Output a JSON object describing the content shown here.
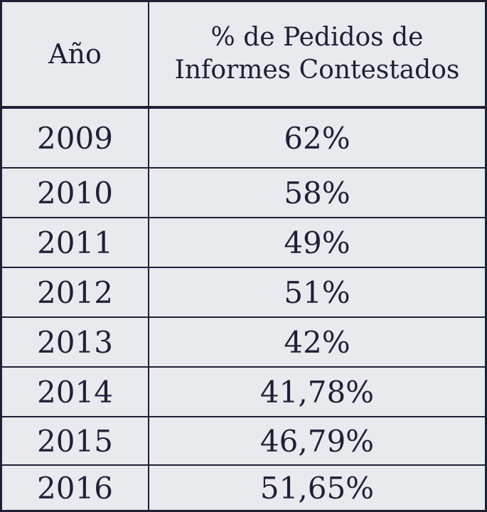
{
  "chart_data": {
    "type": "table",
    "columns": [
      "Año",
      "% de Pedidos de Informes Contestados"
    ],
    "rows": [
      {
        "year": "2009",
        "value": "62%"
      },
      {
        "year": "2010",
        "value": "58%"
      },
      {
        "year": "2011",
        "value": "49%"
      },
      {
        "year": "2012",
        "value": "51%"
      },
      {
        "year": "2013",
        "value": "42%"
      },
      {
        "year": "2014",
        "value": "41,78%"
      },
      {
        "year": "2015",
        "value": "46,79%"
      },
      {
        "year": "2016",
        "value": "51,65%"
      }
    ]
  }
}
